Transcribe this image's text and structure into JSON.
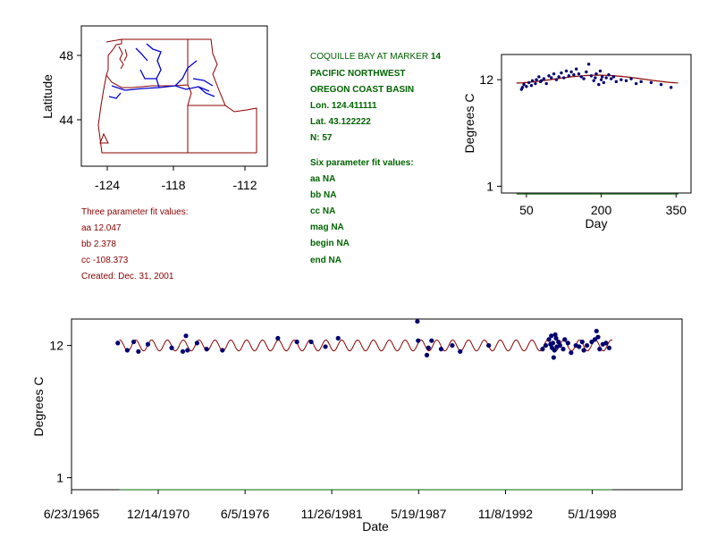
{
  "station": {
    "name_prefix": "COQUILLE BAY AT MARKER",
    "name_num": "14",
    "region": "PACIFIC NORTHWEST",
    "basin": "OREGON COAST BASIN",
    "lon": "Lon. 124.411111",
    "lat": "Lat. 43.122222",
    "n": "N: 57"
  },
  "six_param": {
    "title": "Six parameter fit values:",
    "lines": [
      "aa NA",
      "bb NA",
      "cc NA",
      "mag NA",
      "begin NA",
      "end NA"
    ]
  },
  "three_param": {
    "title": "Three parameter fit values:",
    "lines": [
      "aa 12.047",
      "bb 2.378",
      "cc -108.373",
      "Created:   Dec. 31, 2001"
    ]
  },
  "colors": {
    "fit": "#8b0000",
    "points": "#00006e",
    "baseline": "#006400",
    "map_border": "#8b0000",
    "rivers": "#0000cd"
  },
  "map": {
    "type": "map",
    "ylabel": "Latitude",
    "xticks": [
      "-124",
      "-118",
      "-112"
    ],
    "yticks": [
      "48",
      "44"
    ]
  },
  "chart_data": [
    {
      "type": "scatter",
      "name": "seasonal",
      "xlabel": "Day",
      "ylabel": "Degrees C",
      "xlim": [
        0,
        380
      ],
      "ylim": [
        0.3,
        14.6
      ],
      "xticks": [
        "50",
        "200",
        "350"
      ],
      "yticks": [
        "1",
        "12"
      ],
      "fit": {
        "aa": 12.047,
        "bb": 2.378,
        "cc": -108.373
      },
      "baseline": 0.2,
      "x": [
        40,
        42,
        45,
        50,
        55,
        60,
        62,
        68,
        70,
        75,
        78,
        80,
        85,
        90,
        95,
        100,
        105,
        110,
        115,
        120,
        125,
        130,
        135,
        140,
        145,
        150,
        155,
        160,
        165,
        170,
        175,
        180,
        185,
        188,
        190,
        195,
        198,
        200,
        202,
        205,
        210,
        215,
        220,
        225,
        230,
        240,
        250,
        260,
        270,
        280,
        300,
        320,
        340
      ],
      "y": [
        11.0,
        11.2,
        11.5,
        11.3,
        11.7,
        11.4,
        11.9,
        11.6,
        12.0,
        12.3,
        11.8,
        11.9,
        12.1,
        11.6,
        12.4,
        12.2,
        12.6,
        12.0,
        12.3,
        12.7,
        12.2,
        12.9,
        12.4,
        12.8,
        12.5,
        13.1,
        12.6,
        12.3,
        12.1,
        12.8,
        13.6,
        12.4,
        11.9,
        12.2,
        12.6,
        11.5,
        12.9,
        12.0,
        12.3,
        11.7,
        12.2,
        12.5,
        12.1,
        12.3,
        11.8,
        12.0,
        11.9,
        12.1,
        11.6,
        11.8,
        11.7,
        11.5,
        11.2
      ]
    },
    {
      "type": "scatter",
      "name": "timeseries",
      "xlabel": "Date",
      "ylabel": "Degrees C",
      "xticks": [
        "6/23/1965",
        "12/14/1970",
        "6/5/1976",
        "11/26/1981",
        "5/19/1987",
        "11/8/1992",
        "5/1/1998"
      ],
      "yticks": [
        "1",
        "12"
      ],
      "xlim": [
        1965.48,
        2004.0
      ],
      "ylim": [
        0.0,
        14.2
      ],
      "fit_start": 1968.5,
      "fit_end": 1999.6,
      "baseline": 0.0,
      "x": [
        1968.4,
        1969.0,
        1969.4,
        1969.7,
        1970.3,
        1971.8,
        1972.5,
        1972.7,
        1972.8,
        1973.4,
        1974.0,
        1975.0,
        1978.5,
        1979.7,
        1980.6,
        1981.5,
        1982.3,
        1987.3,
        1987.35,
        1987.9,
        1988.0,
        1988.2,
        1988.8,
        1989.5,
        1990.0,
        1991.8,
        1995.2,
        1995.4,
        1995.6,
        1995.7,
        1995.75,
        1995.8,
        1995.85,
        1995.9,
        1995.95,
        1996.0,
        1996.05,
        1996.1,
        1996.2,
        1996.3,
        1996.5,
        1996.6,
        1996.8,
        1997.0,
        1997.3,
        1997.5,
        1997.7,
        1997.8,
        1998.0,
        1998.3,
        1998.5,
        1998.6,
        1998.7,
        1998.8,
        1999.0,
        1999.2,
        1999.4
      ],
      "y": [
        12.2,
        11.6,
        12.3,
        11.5,
        12.1,
        11.8,
        11.5,
        12.8,
        11.6,
        12.2,
        11.7,
        11.6,
        12.6,
        12.3,
        12.3,
        11.9,
        12.6,
        14.0,
        12.4,
        11.2,
        11.8,
        12.4,
        11.7,
        12.0,
        11.5,
        12.0,
        11.7,
        12.0,
        12.5,
        12.1,
        12.8,
        11.8,
        12.2,
        11.0,
        11.6,
        12.9,
        12.6,
        11.9,
        12.3,
        12.0,
        11.7,
        12.5,
        12.2,
        11.4,
        12.0,
        11.9,
        12.3,
        11.6,
        12.0,
        12.3,
        12.5,
        13.2,
        12.7,
        11.7,
        12.1,
        12.2,
        11.8
      ]
    }
  ]
}
